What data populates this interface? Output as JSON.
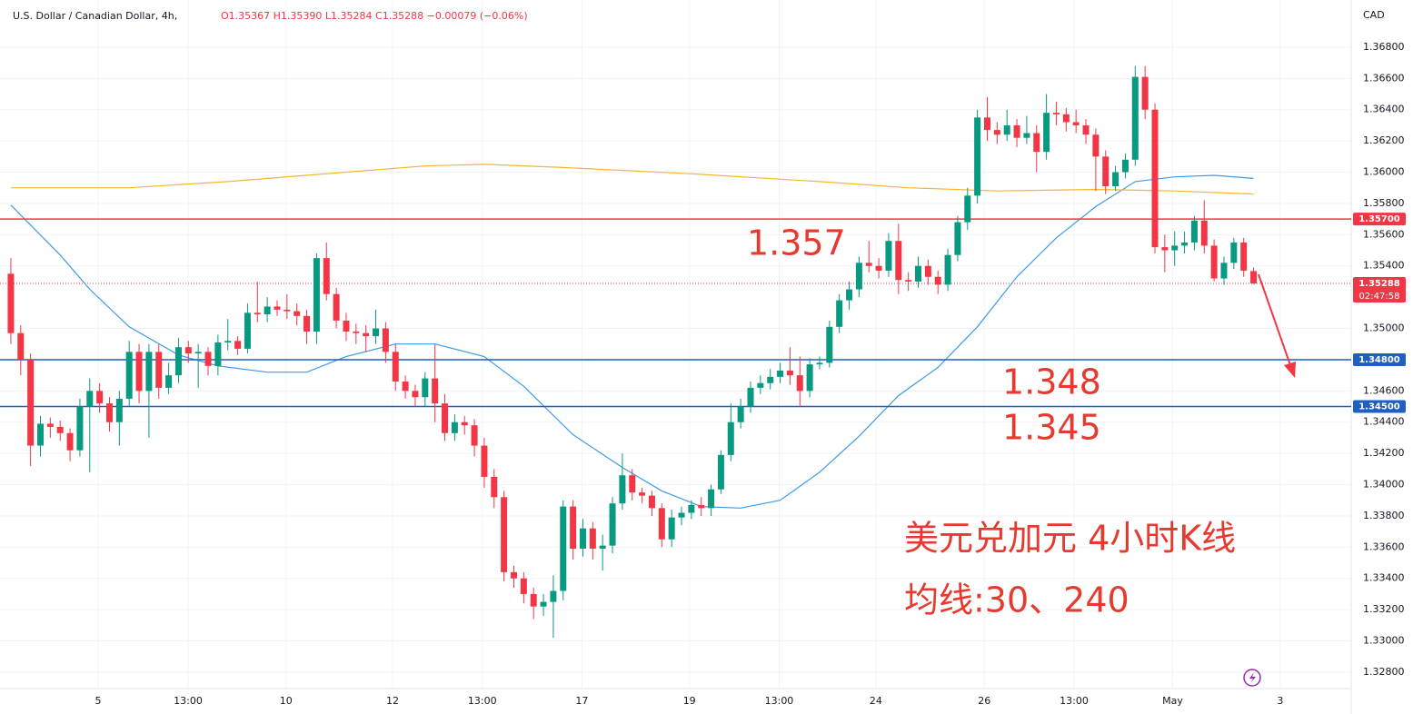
{
  "chart_data": {
    "type": "candlestick",
    "title": "U.S. Dollar / Canadian Dollar, 4h,",
    "quote": "O1.35367 H1.35390 L1.35284 C1.35288 −0.00079 (−0.06%)",
    "currency": "CAD",
    "up_color": "#089981",
    "down_color": "#f23645",
    "x": [
      0,
      1,
      2,
      3,
      4,
      5,
      6,
      7,
      8,
      9,
      10,
      11,
      12,
      13,
      14,
      15,
      16,
      17,
      18,
      19,
      20,
      21,
      22,
      23,
      24,
      25,
      26,
      27,
      28,
      29,
      30,
      31,
      32,
      33,
      34,
      35,
      36,
      37,
      38,
      39,
      40,
      41,
      42,
      43,
      44,
      45,
      46,
      47,
      48,
      49,
      50,
      51,
      52,
      53,
      54,
      55,
      56,
      57,
      58,
      59,
      60,
      61,
      62,
      63,
      64,
      65,
      66,
      67,
      68,
      69,
      70,
      71,
      72,
      73,
      74,
      75,
      76,
      77,
      78,
      79,
      80,
      81,
      82,
      83,
      84,
      85,
      86,
      87,
      88,
      89,
      90,
      91,
      92,
      93,
      94,
      95,
      96,
      97,
      98,
      99,
      100,
      101,
      102,
      103,
      104,
      105,
      106,
      107,
      108,
      109,
      110,
      111,
      112,
      113,
      114,
      115,
      116,
      117,
      118,
      119,
      120,
      121,
      122,
      123,
      124,
      125,
      126
    ],
    "ohlc": [
      [
        1.3535,
        1.3545,
        1.349,
        1.3497
      ],
      [
        1.3497,
        1.3502,
        1.347,
        1.348
      ],
      [
        1.348,
        1.3484,
        1.3412,
        1.3425
      ],
      [
        1.3425,
        1.3444,
        1.3418,
        1.3439
      ],
      [
        1.3439,
        1.3443,
        1.343,
        1.3437
      ],
      [
        1.3437,
        1.3441,
        1.3428,
        1.3433
      ],
      [
        1.3433,
        1.3436,
        1.3415,
        1.3422
      ],
      [
        1.3422,
        1.3455,
        1.3418,
        1.345
      ],
      [
        1.345,
        1.3468,
        1.3408,
        1.346
      ],
      [
        1.346,
        1.3465,
        1.3446,
        1.3452
      ],
      [
        1.3452,
        1.3456,
        1.3434,
        1.344
      ],
      [
        1.344,
        1.346,
        1.3425,
        1.3455
      ],
      [
        1.3455,
        1.3492,
        1.345,
        1.3485
      ],
      [
        1.3485,
        1.349,
        1.3452,
        1.346
      ],
      [
        1.346,
        1.349,
        1.343,
        1.3485
      ],
      [
        1.3485,
        1.349,
        1.3455,
        1.3462
      ],
      [
        1.3462,
        1.3478,
        1.3458,
        1.347
      ],
      [
        1.347,
        1.3494,
        1.3465,
        1.3488
      ],
      [
        1.3488,
        1.3492,
        1.3478,
        1.3484
      ],
      [
        1.3484,
        1.349,
        1.3462,
        1.3485
      ],
      [
        1.3485,
        1.3488,
        1.347,
        1.3476
      ],
      [
        1.3476,
        1.3496,
        1.347,
        1.3491
      ],
      [
        1.3491,
        1.3506,
        1.3486,
        1.3492
      ],
      [
        1.3492,
        1.3495,
        1.3483,
        1.3487
      ],
      [
        1.3487,
        1.3516,
        1.3484,
        1.351
      ],
      [
        1.351,
        1.353,
        1.3504,
        1.3509
      ],
      [
        1.3509,
        1.352,
        1.3504,
        1.3514
      ],
      [
        1.3514,
        1.3518,
        1.3508,
        1.3512
      ],
      [
        1.3512,
        1.3522,
        1.3506,
        1.3511
      ],
      [
        1.3511,
        1.3516,
        1.3502,
        1.3508
      ],
      [
        1.3508,
        1.3512,
        1.349,
        1.3498
      ],
      [
        1.3498,
        1.3548,
        1.349,
        1.3545
      ],
      [
        1.3545,
        1.3555,
        1.3518,
        1.3522
      ],
      [
        1.3522,
        1.3526,
        1.35,
        1.3505
      ],
      [
        1.3505,
        1.351,
        1.3492,
        1.3498
      ],
      [
        1.3498,
        1.3503,
        1.349,
        1.3497
      ],
      [
        1.3497,
        1.3502,
        1.3485,
        1.3495
      ],
      [
        1.3495,
        1.3512,
        1.349,
        1.35
      ],
      [
        1.35,
        1.3504,
        1.3478,
        1.3485
      ],
      [
        1.3485,
        1.349,
        1.346,
        1.3466
      ],
      [
        1.3466,
        1.347,
        1.3455,
        1.346
      ],
      [
        1.346,
        1.3464,
        1.345,
        1.3456
      ],
      [
        1.3456,
        1.3472,
        1.345,
        1.3468
      ],
      [
        1.3468,
        1.349,
        1.344,
        1.3452
      ],
      [
        1.3452,
        1.3458,
        1.3428,
        1.3433
      ],
      [
        1.3433,
        1.3445,
        1.3428,
        1.344
      ],
      [
        1.344,
        1.3444,
        1.3432,
        1.3438
      ],
      [
        1.3438,
        1.3442,
        1.3418,
        1.3425
      ],
      [
        1.3425,
        1.343,
        1.3398,
        1.3405
      ],
      [
        1.3405,
        1.341,
        1.3385,
        1.3392
      ],
      [
        1.3392,
        1.3396,
        1.3338,
        1.3344
      ],
      [
        1.3344,
        1.3348,
        1.3334,
        1.334
      ],
      [
        1.334,
        1.3344,
        1.3324,
        1.333
      ],
      [
        1.333,
        1.3334,
        1.3314,
        1.3322
      ],
      [
        1.3322,
        1.333,
        1.3316,
        1.3325
      ],
      [
        1.3325,
        1.3342,
        1.3302,
        1.3332
      ],
      [
        1.3332,
        1.339,
        1.3326,
        1.3386
      ],
      [
        1.3386,
        1.339,
        1.3352,
        1.3359
      ],
      [
        1.3359,
        1.3378,
        1.3354,
        1.3372
      ],
      [
        1.3372,
        1.3376,
        1.3352,
        1.3359
      ],
      [
        1.3359,
        1.3368,
        1.3345,
        1.3361
      ],
      [
        1.3361,
        1.3392,
        1.3356,
        1.3388
      ],
      [
        1.3388,
        1.342,
        1.3384,
        1.3406
      ],
      [
        1.3406,
        1.341,
        1.339,
        1.3395
      ],
      [
        1.3395,
        1.3398,
        1.3388,
        1.3393
      ],
      [
        1.3393,
        1.3396,
        1.338,
        1.3385
      ],
      [
        1.3385,
        1.3388,
        1.336,
        1.3365
      ],
      [
        1.3365,
        1.3384,
        1.336,
        1.3379
      ],
      [
        1.3379,
        1.3386,
        1.3374,
        1.3382
      ],
      [
        1.3382,
        1.339,
        1.3378,
        1.3387
      ],
      [
        1.3387,
        1.3392,
        1.338,
        1.3385
      ],
      [
        1.3385,
        1.34,
        1.338,
        1.3397
      ],
      [
        1.3397,
        1.3422,
        1.3394,
        1.3419
      ],
      [
        1.3419,
        1.3452,
        1.3415,
        1.344
      ],
      [
        1.344,
        1.3455,
        1.3436,
        1.345
      ],
      [
        1.345,
        1.3466,
        1.3446,
        1.3462
      ],
      [
        1.3462,
        1.347,
        1.3458,
        1.3465
      ],
      [
        1.3465,
        1.3474,
        1.3461,
        1.3469
      ],
      [
        1.3469,
        1.3478,
        1.3465,
        1.3473
      ],
      [
        1.3473,
        1.3488,
        1.3464,
        1.347
      ],
      [
        1.347,
        1.3482,
        1.345,
        1.346
      ],
      [
        1.346,
        1.3481,
        1.3456,
        1.3477
      ],
      [
        1.3477,
        1.3482,
        1.3474,
        1.3478
      ],
      [
        1.3478,
        1.3505,
        1.3475,
        1.3501
      ],
      [
        1.3501,
        1.3522,
        1.3497,
        1.3518
      ],
      [
        1.3518,
        1.353,
        1.3512,
        1.3525
      ],
      [
        1.3525,
        1.3546,
        1.352,
        1.3542
      ],
      [
        1.3542,
        1.3556,
        1.3536,
        1.354
      ],
      [
        1.354,
        1.3545,
        1.3532,
        1.3537
      ],
      [
        1.3537,
        1.3561,
        1.3533,
        1.3556
      ],
      [
        1.3556,
        1.3567,
        1.3522,
        1.3531
      ],
      [
        1.3531,
        1.3536,
        1.3524,
        1.353
      ],
      [
        1.353,
        1.3546,
        1.3526,
        1.354
      ],
      [
        1.354,
        1.3544,
        1.3528,
        1.3533
      ],
      [
        1.3533,
        1.3537,
        1.3522,
        1.3528
      ],
      [
        1.3528,
        1.3551,
        1.3524,
        1.3547
      ],
      [
        1.3547,
        1.3572,
        1.3543,
        1.3568
      ],
      [
        1.3568,
        1.359,
        1.3563,
        1.3585
      ],
      [
        1.3585,
        1.364,
        1.358,
        1.3635
      ],
      [
        1.3635,
        1.3648,
        1.362,
        1.3627
      ],
      [
        1.3627,
        1.3632,
        1.3618,
        1.3624
      ],
      [
        1.3624,
        1.364,
        1.362,
        1.363
      ],
      [
        1.363,
        1.3634,
        1.3616,
        1.3622
      ],
      [
        1.3622,
        1.3636,
        1.3618,
        1.3625
      ],
      [
        1.3625,
        1.363,
        1.36,
        1.3613
      ],
      [
        1.3613,
        1.365,
        1.3608,
        1.3638
      ],
      [
        1.3638,
        1.3645,
        1.363,
        1.3637
      ],
      [
        1.3637,
        1.3641,
        1.3626,
        1.3632
      ],
      [
        1.3632,
        1.364,
        1.3625,
        1.363
      ],
      [
        1.363,
        1.3634,
        1.3618,
        1.3624
      ],
      [
        1.3624,
        1.3628,
        1.3588,
        1.361
      ],
      [
        1.361,
        1.3614,
        1.3586,
        1.3591
      ],
      [
        1.3591,
        1.3604,
        1.3588,
        1.36
      ],
      [
        1.36,
        1.3612,
        1.3596,
        1.3608
      ],
      [
        1.3608,
        1.3668,
        1.3604,
        1.3661
      ],
      [
        1.3661,
        1.3668,
        1.3634,
        1.364
      ],
      [
        1.364,
        1.3644,
        1.3548,
        1.3552
      ],
      [
        1.3552,
        1.356,
        1.3536,
        1.355
      ],
      [
        1.355,
        1.3562,
        1.354,
        1.3553
      ],
      [
        1.3553,
        1.3562,
        1.3548,
        1.3555
      ],
      [
        1.3555,
        1.3572,
        1.355,
        1.3569
      ],
      [
        1.3569,
        1.3582,
        1.3548,
        1.3553
      ],
      [
        1.3553,
        1.3557,
        1.353,
        1.3532
      ],
      [
        1.3532,
        1.3546,
        1.3528,
        1.3542
      ],
      [
        1.3542,
        1.3558,
        1.3538,
        1.3555
      ],
      [
        1.3555,
        1.3558,
        1.3533,
        1.3537
      ],
      [
        1.35367,
        1.3539,
        1.35284,
        1.35288
      ]
    ],
    "ma": [
      {
        "color": "#3d9be9",
        "x": [
          0,
          5,
          8,
          12,
          17,
          21,
          26,
          30,
          34,
          39,
          43,
          48,
          52,
          57,
          62,
          66,
          70,
          74,
          78,
          82,
          86,
          90,
          94,
          98,
          102,
          106,
          110,
          114,
          118,
          122,
          126
        ],
        "values": [
          1.3579,
          1.3547,
          1.3525,
          1.3501,
          1.3483,
          1.3476,
          1.3472,
          1.3472,
          1.3482,
          1.349,
          1.349,
          1.3482,
          1.3463,
          1.3432,
          1.3411,
          1.3396,
          1.3386,
          1.3385,
          1.339,
          1.3408,
          1.3431,
          1.3457,
          1.3475,
          1.3501,
          1.3533,
          1.3558,
          1.3578,
          1.3594,
          1.3597,
          1.3598,
          1.3596
        ]
      },
      {
        "color": "#f5b630",
        "x": [
          0,
          12,
          22,
          34,
          42,
          48,
          56,
          69,
          82,
          91,
          100,
          110,
          118,
          126
        ],
        "values": [
          1.359,
          1.359,
          1.3594,
          1.36,
          1.3604,
          1.3605,
          1.3603,
          1.3599,
          1.3594,
          1.359,
          1.3588,
          1.3589,
          1.3588,
          1.3586
        ]
      }
    ],
    "levels": [
      {
        "value": 1.357,
        "label": "1.35700",
        "color": "#f23645"
      },
      {
        "value": 1.348,
        "label": "1.34800",
        "color": "#1e5fc1"
      },
      {
        "value": 1.345,
        "label": "1.34500",
        "color": "#1e5fc1"
      }
    ],
    "last": {
      "value": 1.35288,
      "label": "1.35288",
      "countdown": "02:47:58",
      "color": "#f23645"
    },
    "xlim": [
      -1.1,
      135.9
    ],
    "ylim": [
      1.32695,
      1.37102
    ],
    "xticks": [
      {
        "value": 8.85,
        "label": "5"
      },
      {
        "value": 17.97,
        "label": "13:00"
      },
      {
        "value": 27.9,
        "label": "10"
      },
      {
        "value": 38.7,
        "label": "12"
      },
      {
        "value": 47.8,
        "label": "13:00"
      },
      {
        "value": 57.9,
        "label": "17"
      },
      {
        "value": 68.8,
        "label": "19"
      },
      {
        "value": 77.9,
        "label": "13:00"
      },
      {
        "value": 87.7,
        "label": "24"
      },
      {
        "value": 98.7,
        "label": "26"
      },
      {
        "value": 107.8,
        "label": "13:00"
      },
      {
        "value": 117.8,
        "label": "May"
      },
      {
        "value": 128.7,
        "label": "3"
      }
    ],
    "yticks": [
      {
        "value": 1.328,
        "label": "1.32800"
      },
      {
        "value": 1.33,
        "label": "1.33000"
      },
      {
        "value": 1.332,
        "label": "1.33200"
      },
      {
        "value": 1.334,
        "label": "1.33400"
      },
      {
        "value": 1.336,
        "label": "1.33600"
      },
      {
        "value": 1.338,
        "label": "1.33800"
      },
      {
        "value": 1.34,
        "label": "1.34000"
      },
      {
        "value": 1.342,
        "label": "1.34200"
      },
      {
        "value": 1.344,
        "label": "1.34400"
      },
      {
        "value": 1.346,
        "label": "1.34600"
      },
      {
        "value": 1.35,
        "label": "1.35000"
      },
      {
        "value": 1.354,
        "label": "1.35400"
      },
      {
        "value": 1.356,
        "label": "1.35600"
      },
      {
        "value": 1.358,
        "label": "1.35800"
      },
      {
        "value": 1.36,
        "label": "1.36000"
      },
      {
        "value": 1.362,
        "label": "1.36200"
      },
      {
        "value": 1.364,
        "label": "1.36400"
      },
      {
        "value": 1.366,
        "label": "1.36600"
      },
      {
        "value": 1.368,
        "label": "1.36800"
      }
    ],
    "grid": true,
    "annotations": [
      "1.357",
      "1.348",
      "1.345",
      "美元兑加元 4小时K线",
      "均线:30、240"
    ]
  }
}
